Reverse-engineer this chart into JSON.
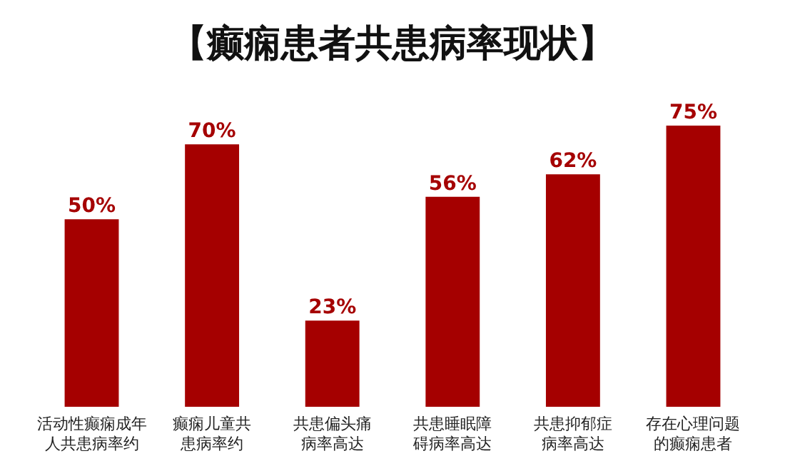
{
  "chart_data": {
    "type": "bar",
    "title": "【癫痫患者共患病率现状】",
    "categories": [
      "活动性癫痫成年人共患病率约",
      "癫痫儿童共患病率约",
      "共患偏头痛病率高达",
      "共患睡眠障碍病率高达",
      "共患抑郁症病率高达",
      "存在心理问题的癫痫患者"
    ],
    "values": [
      50,
      70,
      23,
      56,
      62,
      75
    ],
    "value_labels": [
      "50%",
      "70%",
      "23%",
      "56%",
      "62%",
      "75%"
    ],
    "color": "#a50000"
  }
}
